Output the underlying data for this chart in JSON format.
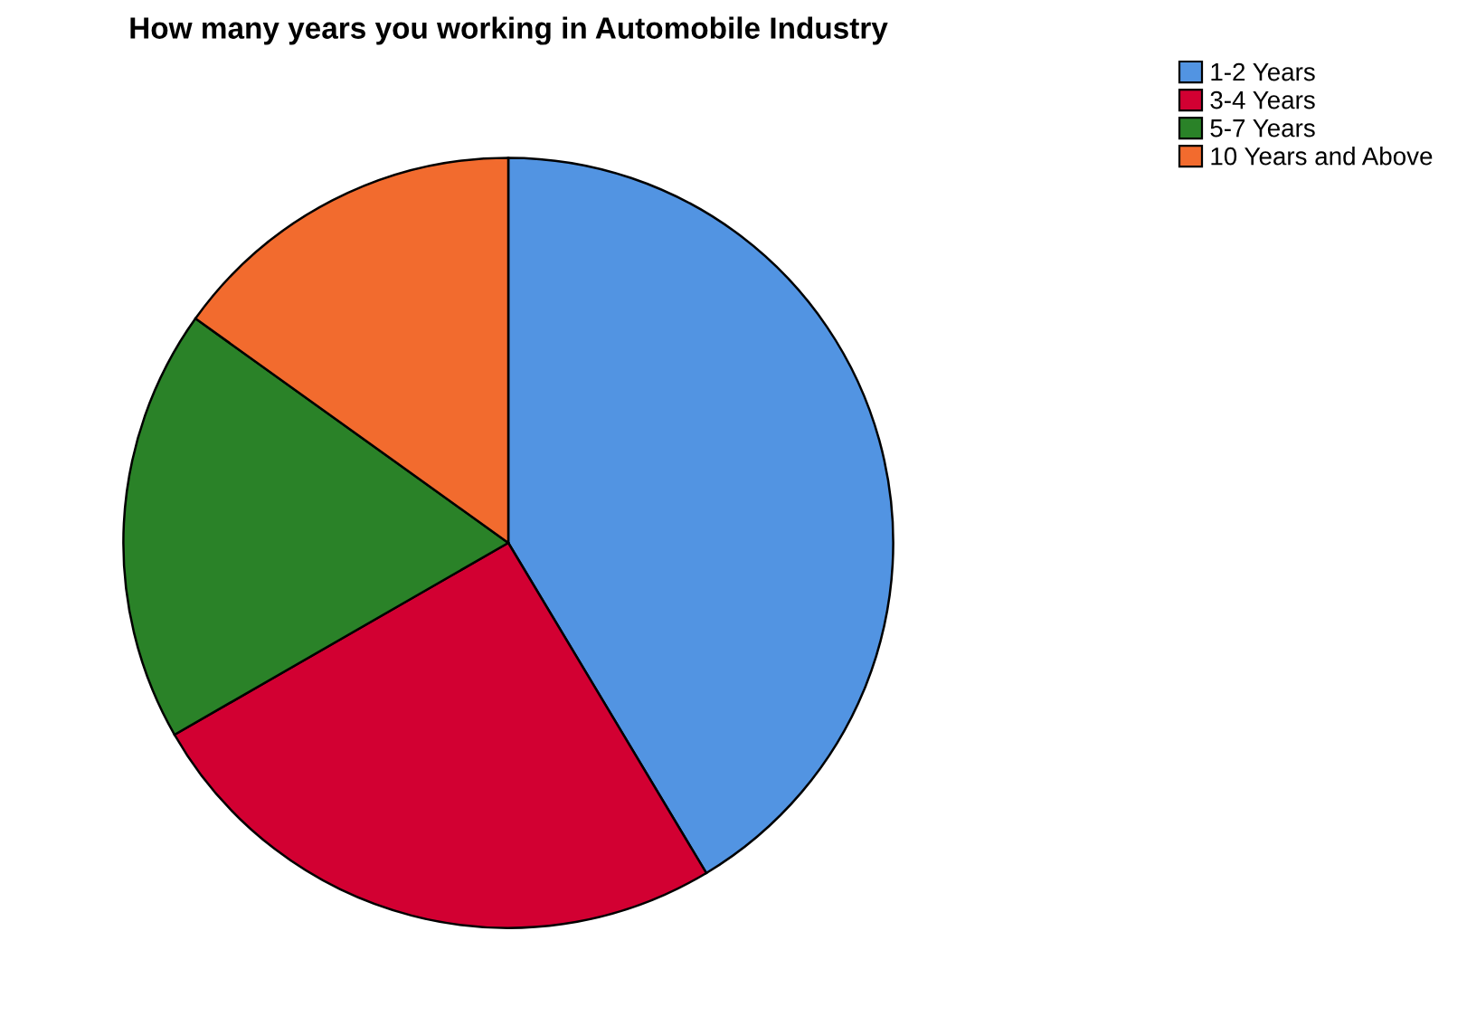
{
  "chart_data": {
    "type": "pie",
    "title": "How many years you working in Automobile Industry",
    "categories": [
      "1-2 Years",
      "3-4 Years",
      "5-7 Years",
      "10 Years and Above"
    ],
    "values": [
      41.4,
      25.3,
      18.2,
      15.1
    ],
    "colors": [
      "#5294e2",
      "#d20032",
      "#2a8228",
      "#f26b2e"
    ],
    "legend": "top right"
  }
}
